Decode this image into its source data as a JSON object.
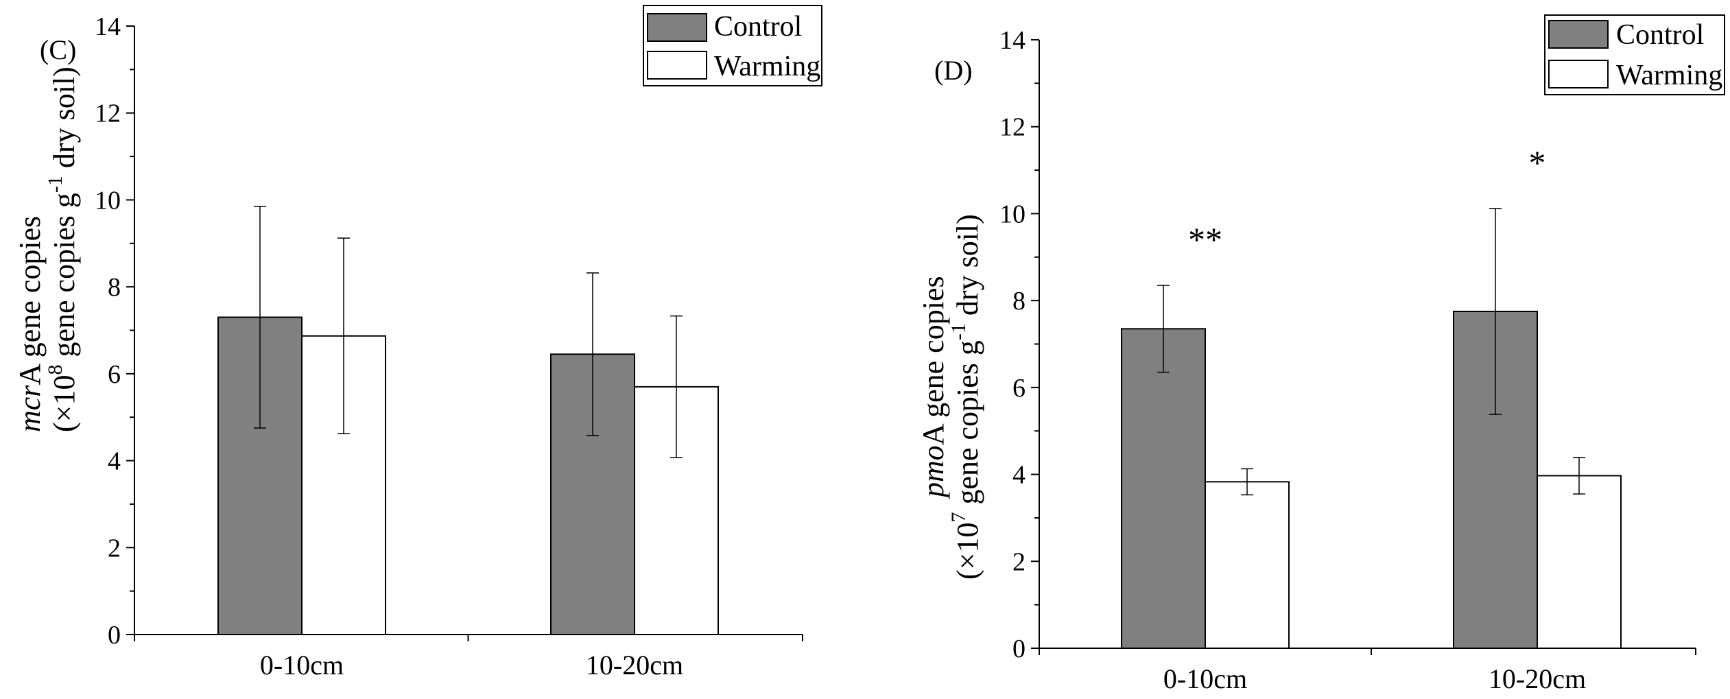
{
  "chart_data": [
    {
      "type": "bar",
      "panel_label": "(C)",
      "categories": [
        "0-10cm",
        "10-20cm"
      ],
      "series": [
        {
          "name": "Control",
          "color": "#808080",
          "values": [
            7.3,
            6.45
          ],
          "errors": [
            2.55,
            1.87
          ]
        },
        {
          "name": "Warming",
          "color": "#ffffff",
          "values": [
            6.87,
            5.7
          ],
          "errors": [
            2.25,
            1.63
          ]
        }
      ],
      "ylim": [
        0,
        14
      ],
      "yticks": [
        0,
        2,
        4,
        6,
        8,
        10,
        12,
        14
      ],
      "ylabel": {
        "gene": "mcr",
        "line1_rest": "A gene copies",
        "line2_prefix": "(×10",
        "exp": "8",
        "line2_mid": " gene copies g",
        "neg_exp": "-1",
        "line2_suffix": " dry soil)"
      },
      "xlabel": "",
      "significance": [
        "",
        ""
      ],
      "legend": {
        "position": "top-right",
        "entries": [
          "Control",
          "Warming"
        ]
      }
    },
    {
      "type": "bar",
      "panel_label": "(D)",
      "categories": [
        "0-10cm",
        "10-20cm"
      ],
      "series": [
        {
          "name": "Control",
          "color": "#808080",
          "values": [
            7.35,
            7.75
          ],
          "errors": [
            1.0,
            2.37
          ]
        },
        {
          "name": "Warming",
          "color": "#ffffff",
          "values": [
            3.83,
            3.97
          ],
          "errors": [
            0.3,
            0.42
          ]
        }
      ],
      "ylim": [
        0,
        14
      ],
      "yticks": [
        0,
        2,
        4,
        6,
        8,
        10,
        12,
        14
      ],
      "ylabel": {
        "gene": "pmo",
        "line1_rest": "A gene copies",
        "line2_prefix": "(×10",
        "exp": "7",
        "line2_mid": " gene copies g",
        "neg_exp": "-1",
        "line2_suffix": " dry soil)"
      },
      "xlabel": "",
      "significance": [
        "**",
        "*"
      ],
      "legend": {
        "position": "top-right",
        "entries": [
          "Control",
          "Warming"
        ]
      }
    }
  ]
}
